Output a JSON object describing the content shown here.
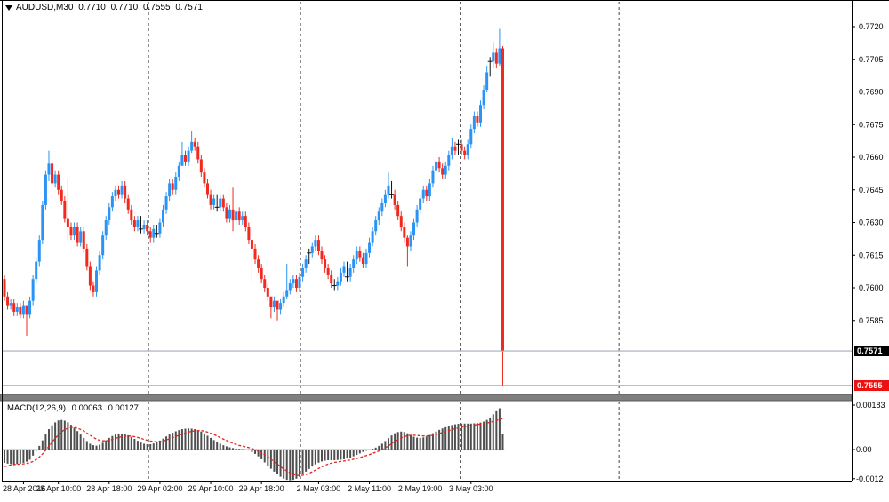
{
  "header": {
    "symbol": "AUDUSD,M30",
    "open": "0.7710",
    "high": "0.7710",
    "low": "0.7555",
    "close": "0.7571"
  },
  "badges": {
    "bid": "0.7571",
    "low": "0.7555"
  },
  "indicator": {
    "label": "MACD(12,26,9)",
    "macd_value": "0.00063",
    "signal_value": "0.00127"
  },
  "chart_data": {
    "type": "candlestick+macd",
    "title": "AUDUSD,M30  0.7710 0.7710 0.7555 0.7571",
    "price_axis_labels": [
      "0.7720",
      "0.7705",
      "0.7690",
      "0.7675",
      "0.7660",
      "0.7645",
      "0.7630",
      "0.7615",
      "0.7600",
      "0.7585"
    ],
    "price_axis_values": [
      0.772,
      0.7705,
      0.769,
      0.7675,
      0.766,
      0.7645,
      0.763,
      0.7615,
      0.76,
      0.7585
    ],
    "macd_axis": [
      {
        "label": "0.00183",
        "v": 183
      },
      {
        "label": "0.00",
        "v": 0
      },
      {
        "label": "-0.0012",
        "v": -120
      }
    ],
    "time_labels": [
      {
        "label": "28 Apr 2016",
        "i": 6
      },
      {
        "label": "28 Apr 10:00",
        "i": 17
      },
      {
        "label": "28 Apr 18:00",
        "i": 33
      },
      {
        "label": "29 Apr 02:00",
        "i": 49
      },
      {
        "label": "29 Apr 10:00",
        "i": 65
      },
      {
        "label": "29 Apr 18:00",
        "i": 81
      },
      {
        "label": "2 May 03:00",
        "i": 99
      },
      {
        "label": "2 May 11:00",
        "i": 115
      },
      {
        "label": "2 May 19:00",
        "i": 131
      },
      {
        "label": "3 May 03:00",
        "i": 147
      }
    ],
    "day_separators_i": [
      45.4,
      93.3,
      143.6,
      193.6
    ],
    "bid_line_price": 0.7571,
    "low_line_price": 0.7555,
    "colors": {
      "bull": "#2a93f5",
      "bear": "#f1291f",
      "doji": "#111111",
      "hist": "#4f4f4f",
      "signal": "#e02424",
      "bid_line": "#a3aeb8",
      "low_line": "#ff4a42",
      "separator_bar": "#7f7f7f",
      "frame": "#000000"
    },
    "candles": {
      "first_open_x10000": 7604,
      "closes_x10000": [
        7596,
        7592,
        7593,
        7589,
        7591,
        7588,
        7592,
        7588,
        7594,
        7604,
        7612,
        7622,
        7638,
        7652,
        7657,
        7648,
        7652,
        7645,
        7640,
        7632,
        7628,
        7624,
        7628,
        7621,
        7626,
        7618,
        7610,
        7601,
        7598,
        7608,
        7615,
        7624,
        7631,
        7637,
        7642,
        7645,
        7643,
        7647,
        7641,
        7636,
        7631,
        7628,
        7631,
        7627,
        7629,
        7626,
        7623,
        7627,
        7625,
        7630,
        7636,
        7642,
        7648,
        7645,
        7651,
        7656,
        7661,
        7658,
        7663,
        7667,
        7665,
        7659,
        7653,
        7648,
        7643,
        7638,
        7641,
        7637,
        7641,
        7637,
        7632,
        7636,
        7631,
        7635,
        7631,
        7633,
        7628,
        7622,
        7618,
        7613,
        7609,
        7604,
        7600,
        7596,
        7591,
        7594,
        7590,
        7593,
        7596,
        7599,
        7602,
        7604,
        7600,
        7605,
        7609,
        7613,
        7616,
        7619,
        7622,
        7617,
        7613,
        7609,
        7606,
        7602,
        7601,
        7603,
        7607,
        7610,
        7605,
        7609,
        7613,
        7617,
        7614,
        7611,
        7616,
        7621,
        7626,
        7631,
        7635,
        7639,
        7643,
        7647,
        7643,
        7638,
        7633,
        7628,
        7623,
        7619,
        7624,
        7630,
        7636,
        7641,
        7645,
        7642,
        7648,
        7654,
        7658,
        7655,
        7652,
        7656,
        7661,
        7665,
        7663,
        7666,
        7663,
        7661,
        7666,
        7673,
        7679,
        7676,
        7684,
        7691,
        7699,
        7704,
        7708,
        7703,
        7710,
        7571
      ],
      "doji_indices": [
        43,
        48,
        67,
        96,
        104,
        108,
        122,
        143,
        153
      ],
      "wick_overrides_x10000": {
        "7": [
          7592,
          7578
        ],
        "14": [
          7663,
          7649
        ],
        "20": [
          7650,
          7622
        ],
        "56": [
          7667,
          7657
        ],
        "59": [
          7672,
          7662
        ],
        "72": [
          7646,
          7626
        ],
        "78": [
          7622,
          7603
        ],
        "84": [
          7596,
          7586
        ],
        "86": [
          7594,
          7585
        ],
        "89": [
          7611,
          7595
        ],
        "121": [
          7653,
          7641
        ],
        "127": [
          7624,
          7610
        ],
        "136": [
          7662,
          7650
        ],
        "141": [
          7669,
          7659
        ],
        "148": [
          7681,
          7671
        ],
        "152": [
          7702,
          7690
        ],
        "154": [
          7713,
          7701
        ],
        "156": [
          7719,
          7702
        ],
        "157": [
          7711,
          7555
        ]
      },
      "last_candle_ohlc": [
        0.771,
        0.771,
        0.7555,
        0.7571
      ]
    },
    "macd_histogram_x100000": [
      -55,
      -58,
      -60,
      -61,
      -60,
      -58,
      -55,
      -50,
      -42,
      -25,
      -5,
      15,
      38,
      62,
      84,
      100,
      112,
      120,
      122,
      119,
      112,
      102,
      90,
      76,
      62,
      48,
      35,
      24,
      18,
      16,
      20,
      28,
      38,
      48,
      56,
      62,
      65,
      66,
      64,
      59,
      52,
      44,
      36,
      29,
      24,
      22,
      22,
      25,
      30,
      37,
      45,
      54,
      62,
      69,
      75,
      80,
      84,
      86,
      87,
      86,
      84,
      80,
      74,
      66,
      57,
      48,
      39,
      31,
      24,
      18,
      13,
      9,
      6,
      4,
      3,
      2,
      0,
      -4,
      -10,
      -18,
      -28,
      -40,
      -53,
      -66,
      -79,
      -91,
      -102,
      -112,
      -120,
      -125,
      -127,
      -125,
      -120,
      -112,
      -102,
      -91,
      -80,
      -70,
      -61,
      -54,
      -49,
      -46,
      -44,
      -44,
      -44,
      -43,
      -42,
      -40,
      -37,
      -33,
      -28,
      -22,
      -16,
      -10,
      -5,
      -1,
      3,
      8,
      15,
      24,
      35,
      47,
      58,
      67,
      72,
      74,
      72,
      67,
      60,
      53,
      49,
      48,
      50,
      54,
      60,
      67,
      74,
      81,
      87,
      92,
      97,
      101,
      104,
      106,
      107,
      107,
      107,
      107,
      108,
      109,
      111,
      115,
      122,
      132,
      145,
      158,
      170,
      63
    ],
    "macd_signal_x100000": [
      -70,
      -67,
      -64,
      -62,
      -61,
      -60,
      -59,
      -57,
      -54,
      -49,
      -41,
      -31,
      -18,
      -3,
      13,
      30,
      46,
      61,
      73,
      82,
      88,
      91,
      91,
      88,
      83,
      76,
      68,
      59,
      50,
      43,
      38,
      36,
      36,
      38,
      42,
      46,
      50,
      53,
      55,
      56,
      55,
      53,
      50,
      46,
      42,
      38,
      35,
      33,
      32,
      33,
      35,
      39,
      44,
      49,
      54,
      59,
      64,
      68,
      72,
      75,
      77,
      78,
      78,
      76,
      72,
      67,
      62,
      56,
      49,
      43,
      37,
      31,
      26,
      21,
      17,
      14,
      11,
      8,
      4,
      0,
      -6,
      -13,
      -21,
      -30,
      -40,
      -50,
      -60,
      -70,
      -80,
      -89,
      -96,
      -102,
      -106,
      -107,
      -106,
      -103,
      -98,
      -92,
      -85,
      -78,
      -71,
      -65,
      -60,
      -56,
      -53,
      -51,
      -49,
      -47,
      -45,
      -43,
      -40,
      -37,
      -33,
      -29,
      -25,
      -21,
      -16,
      -11,
      -6,
      0,
      7,
      15,
      24,
      33,
      41,
      48,
      53,
      57,
      59,
      59,
      58,
      57,
      56,
      56,
      57,
      59,
      62,
      66,
      70,
      74,
      78,
      82,
      86,
      89,
      92,
      95,
      97,
      99,
      101,
      103,
      105,
      107,
      109,
      112,
      116,
      120,
      124,
      127
    ]
  }
}
